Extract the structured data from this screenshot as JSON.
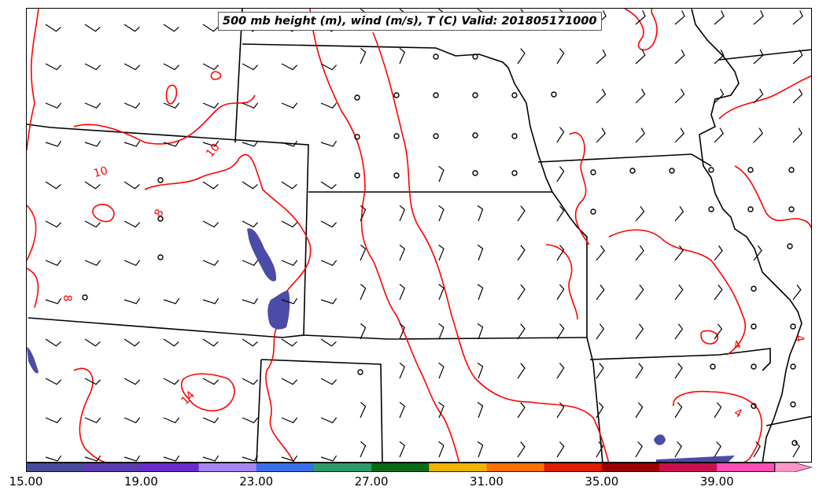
{
  "map": {
    "title": "500 mb height (m), wind (m/s), T (C) Valid: 201805171000",
    "contour_color": "#ff0000",
    "border_color": "#000000",
    "shading_color": "#4b4ba8",
    "contour_labels": [
      "10",
      "10",
      "8",
      "8",
      "14",
      "4",
      "4",
      "4",
      "4"
    ]
  },
  "colorbar": {
    "colors": [
      "#4a4a9a",
      "#5a3cac",
      "#6a2ccc",
      "#a585f0",
      "#3a6ee8",
      "#2e9a6a",
      "#086a14",
      "#f0b400",
      "#ff7000",
      "#e01e00",
      "#9c0000",
      "#c8104e",
      "#ff50b4",
      "#ff96c8"
    ],
    "tick_labels": [
      "15.00",
      "19.00",
      "23.00",
      "27.00",
      "31.00",
      "35.00",
      "39.00"
    ]
  }
}
